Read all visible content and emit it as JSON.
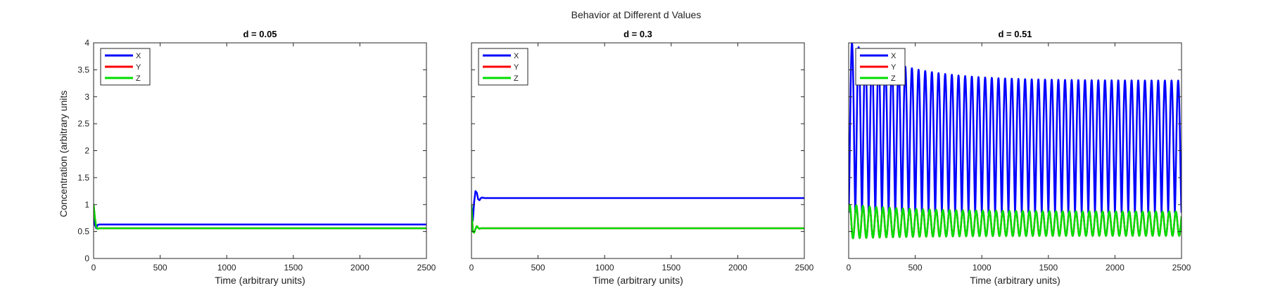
{
  "figure": {
    "title": "Behavior at Different d Values",
    "ylabel": "Concentration (arbitrary units"
  },
  "chart_data": [
    {
      "type": "line",
      "title": "d = 0.05",
      "xlabel": "Time (arbitrary units)",
      "ylabel": "Concentration (arbitrary units",
      "xlim": [
        0,
        2500
      ],
      "ylim": [
        0,
        4
      ],
      "xticks": [
        "0",
        "500",
        "1000",
        "1500",
        "2000",
        "2500"
      ],
      "yticks": [
        "0",
        "0.5",
        "1",
        "1.5",
        "2",
        "2.5",
        "3",
        "3.5",
        "4"
      ],
      "legend_position": "top-left",
      "series": [
        {
          "name": "X",
          "color": "#0000ff",
          "x": [
            0,
            10,
            20,
            30,
            40,
            60,
            100,
            2500
          ],
          "y": [
            1.0,
            0.62,
            0.56,
            0.62,
            0.63,
            0.63,
            0.63,
            0.63
          ]
        },
        {
          "name": "Y",
          "color": "#ff0000",
          "x": [
            0,
            10,
            20,
            30,
            40,
            60,
            100,
            2500
          ],
          "y": [
            1.0,
            0.75,
            0.58,
            0.55,
            0.56,
            0.56,
            0.56,
            0.56
          ]
        },
        {
          "name": "Z",
          "color": "#00dd00",
          "x": [
            0,
            10,
            20,
            30,
            40,
            60,
            100,
            2500
          ],
          "y": [
            1.0,
            0.75,
            0.58,
            0.55,
            0.56,
            0.56,
            0.56,
            0.56
          ]
        }
      ]
    },
    {
      "type": "line",
      "title": "d = 0.3",
      "xlabel": "Time (arbitrary units)",
      "ylabel": "",
      "xlim": [
        0,
        2500
      ],
      "ylim": [
        0,
        4
      ],
      "xticks": [
        "0",
        "500",
        "1000",
        "1500",
        "2000",
        "2500"
      ],
      "yticks": [],
      "legend_position": "top-left",
      "series": [
        {
          "name": "X",
          "color": "#0000ff",
          "x": [
            0,
            10,
            20,
            30,
            40,
            50,
            60,
            70,
            80,
            100,
            2500
          ],
          "y": [
            1.0,
            0.7,
            1.05,
            1.25,
            1.22,
            1.1,
            1.08,
            1.12,
            1.13,
            1.12,
            1.12
          ]
        },
        {
          "name": "Y",
          "color": "#ff0000",
          "x": [
            0,
            10,
            20,
            30,
            40,
            50,
            60,
            70,
            100,
            2500
          ],
          "y": [
            1.0,
            0.5,
            0.48,
            0.55,
            0.6,
            0.57,
            0.55,
            0.56,
            0.56,
            0.56
          ]
        },
        {
          "name": "Z",
          "color": "#00dd00",
          "x": [
            0,
            10,
            20,
            30,
            40,
            50,
            60,
            70,
            100,
            2500
          ],
          "y": [
            1.0,
            0.5,
            0.48,
            0.55,
            0.6,
            0.57,
            0.55,
            0.56,
            0.56,
            0.56
          ]
        }
      ]
    },
    {
      "type": "line",
      "title": "d = 0.51",
      "xlabel": "Time (arbitrary units)",
      "ylabel": "",
      "xlim": [
        0,
        2500
      ],
      "ylim": [
        0,
        4
      ],
      "xticks": [
        "0",
        "500",
        "1000",
        "1500",
        "2000",
        "2500"
      ],
      "yticks": [],
      "legend_position": "top-left",
      "oscillation": {
        "t_end": 2500,
        "period": 50,
        "X": {
          "min": 0.85,
          "peak_start": 4.05,
          "peak_end": 3.3,
          "decay": 400
        },
        "Y": {
          "min": 0.37,
          "max_start": 1.0,
          "max_end": 0.87,
          "min_end": 0.42,
          "decay": 500
        },
        "Z": {
          "min": 0.37,
          "max_start": 1.0,
          "max_end": 0.87,
          "min_end": 0.42,
          "decay": 500
        }
      },
      "series": [
        {
          "name": "X",
          "color": "#0000ff"
        },
        {
          "name": "Y",
          "color": "#ff0000"
        },
        {
          "name": "Z",
          "color": "#00dd00"
        }
      ]
    }
  ]
}
